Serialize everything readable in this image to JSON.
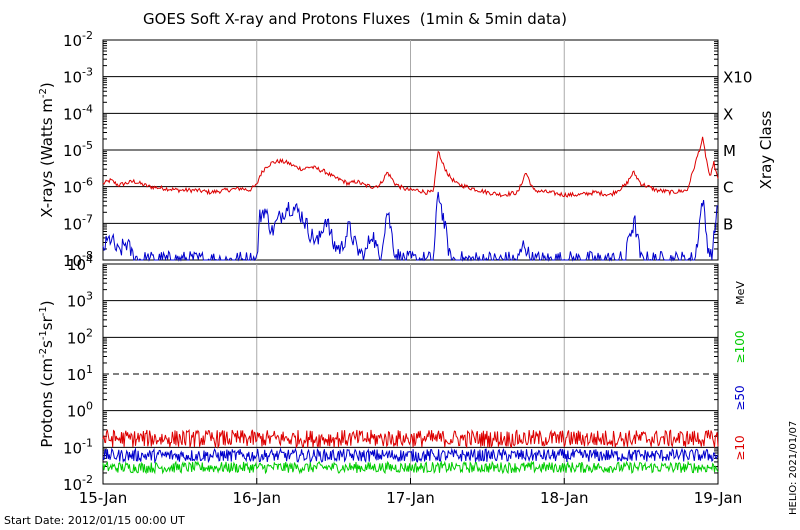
{
  "chart_data": [
    {
      "type": "line",
      "title": "GOES Soft X-ray and Protons Fluxes  (1min & 5min data)",
      "xlabel": "",
      "ylabel_prefix": "X-rays (Watts m",
      "ylabel_sup": "-2",
      "ylabel_suffix": ")",
      "yscale": "log",
      "ylim": [
        1e-08,
        0.01
      ],
      "y_tick_exponents": [
        "-8",
        "-7",
        "-6",
        "-5",
        "-4",
        "-3",
        "-2"
      ],
      "right_axis_title": "Xray Class",
      "right_labels": [
        {
          "label": "X10",
          "value": 0.001
        },
        {
          "label": "X",
          "value": 0.0001
        },
        {
          "label": "M",
          "value": 1e-05
        },
        {
          "label": "C",
          "value": 1e-06
        },
        {
          "label": "B",
          "value": 1e-07
        }
      ],
      "grid": "horizontal at each decade",
      "series": [
        {
          "color": "#dd0000",
          "x": [
            0,
            0.05,
            0.1,
            0.2,
            0.3,
            0.4,
            0.5,
            0.6,
            0.7,
            0.8,
            0.9,
            0.95,
            1.0,
            1.02,
            1.06,
            1.1,
            1.15,
            1.2,
            1.25,
            1.3,
            1.35,
            1.4,
            1.45,
            1.5,
            1.55,
            1.6,
            1.65,
            1.7,
            1.75,
            1.8,
            1.85,
            1.9,
            1.95,
            2.0,
            2.05,
            2.1,
            2.15,
            2.18,
            2.2,
            2.25,
            2.3,
            2.4,
            2.5,
            2.6,
            2.7,
            2.75,
            2.8,
            2.9,
            3.0,
            3.1,
            3.2,
            3.3,
            3.4,
            3.45,
            3.5,
            3.6,
            3.7,
            3.8,
            3.9,
            3.95,
            3.97,
            4.0
          ],
          "y": [
            1.2e-06,
            1.5e-06,
            1.1e-06,
            1.4e-06,
            1e-06,
            9e-07,
            8e-07,
            8e-07,
            7e-07,
            8e-07,
            9e-07,
            8e-07,
            1.1e-06,
            2e-06,
            3.5e-06,
            4.5e-06,
            5e-06,
            4.5e-06,
            3.5e-06,
            3e-06,
            3.5e-06,
            3e-06,
            2.5e-06,
            1.8e-06,
            1.5e-06,
            1.2e-06,
            1.4e-06,
            1.1e-06,
            1e-06,
            1.1e-06,
            2.5e-06,
            1.2e-06,
            9e-07,
            8e-07,
            8e-07,
            7e-07,
            7e-07,
            1e-05,
            5e-06,
            2e-06,
            1.2e-06,
            9e-07,
            7e-07,
            6e-07,
            7e-07,
            2.5e-06,
            8e-07,
            7e-07,
            6e-07,
            6e-07,
            7e-07,
            6e-07,
            1.1e-06,
            2.5e-06,
            1.2e-06,
            8e-07,
            7e-07,
            8e-07,
            2e-05,
            1.5e-06,
            5e-06,
            1.5e-06
          ]
        },
        {
          "color": "#0000cc",
          "x": [
            0,
            0.05,
            0.1,
            0.15,
            0.2,
            0.25,
            0.3,
            0.35,
            0.4,
            0.6,
            0.8,
            0.9,
            0.95,
            1.0,
            1.02,
            1.05,
            1.1,
            1.15,
            1.2,
            1.25,
            1.3,
            1.35,
            1.4,
            1.45,
            1.5,
            1.55,
            1.6,
            1.65,
            1.7,
            1.75,
            1.8,
            1.85,
            1.9,
            1.95,
            2.0,
            2.05,
            2.1,
            2.15,
            2.18,
            2.22,
            2.26,
            2.3,
            2.5,
            2.7,
            2.74,
            2.78,
            3.0,
            3.2,
            3.4,
            3.42,
            3.46,
            3.5,
            3.7,
            3.85,
            3.9,
            3.93,
            3.96,
            4.0
          ],
          "y": [
            2e-08,
            4e-08,
            1.5e-08,
            3e-08,
            1.2e-08,
            1e-08,
            1e-08,
            1e-08,
            1e-08,
            1e-08,
            1e-08,
            1e-08,
            1e-08,
            1e-08,
            1.5e-07,
            2.5e-07,
            6e-08,
            1.5e-07,
            3e-07,
            2.5e-07,
            1.5e-07,
            5e-08,
            3e-08,
            1.5e-07,
            2.5e-08,
            2e-08,
            8e-08,
            2e-08,
            1.2e-08,
            6e-08,
            1e-08,
            2.5e-07,
            1.5e-08,
            1e-08,
            1e-08,
            1e-08,
            1e-08,
            1e-08,
            8e-07,
            1e-07,
            1e-08,
            1e-08,
            1e-08,
            1e-08,
            3e-08,
            1e-08,
            1e-08,
            1e-08,
            1e-08,
            5e-08,
            1e-07,
            1e-08,
            1e-08,
            1e-08,
            5e-07,
            3e-08,
            1e-08,
            5e-07
          ]
        }
      ]
    },
    {
      "type": "line",
      "title": "",
      "xlabel": "",
      "ylabel_prefix": "Protons (cm",
      "ylabel_sup1": "-2",
      "ylabel_mid1": "s",
      "ylabel_sup2": "-1",
      "ylabel_mid2": "sr",
      "ylabel_sup3": "-1",
      "ylabel_suffix": ")",
      "yscale": "log",
      "ylim": [
        0.01,
        10000
      ],
      "y_tick_exponents": [
        "-2",
        "-1",
        "0",
        "1",
        "2",
        "3",
        "4"
      ],
      "threshold_line": 10,
      "right_unit": "MeV",
      "legend": [
        {
          "label": "≥100",
          "color": "#00cc00"
        },
        {
          "label": "≥50",
          "color": "#0000cc"
        },
        {
          "label": "≥10",
          "color": "#dd0000"
        }
      ],
      "series": [
        {
          "name": "≥10",
          "color": "#dd0000",
          "level_min": 0.1,
          "level_max": 0.3
        },
        {
          "name": "≥50",
          "color": "#0000cc",
          "level_min": 0.04,
          "level_max": 0.09
        },
        {
          "name": "≥100",
          "color": "#00cc00",
          "level_min": 0.02,
          "level_max": 0.04
        }
      ]
    }
  ],
  "x_axis": {
    "categories": [
      "15-Jan",
      "16-Jan",
      "17-Jan",
      "18-Jan",
      "19-Jan"
    ],
    "ticks": [
      0,
      1,
      2,
      3,
      4
    ]
  },
  "footer": {
    "start_date": "Start Date: 2012/01/15 00:00 UT",
    "credit": "HELIO: 2021/01/07"
  }
}
